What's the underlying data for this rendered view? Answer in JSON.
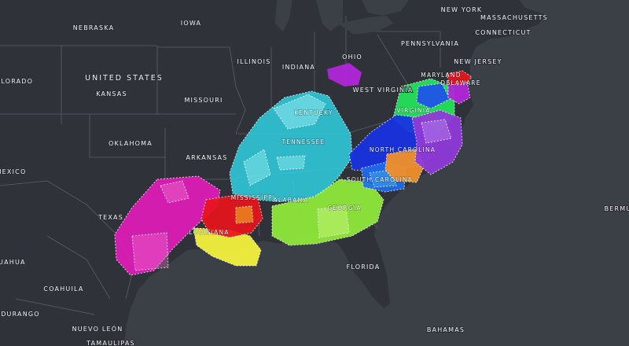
{
  "map": {
    "colors": {
      "ocean": "#3b3f46",
      "land": "#2f3238",
      "border": "#5a5f68",
      "label": "#eef0f3"
    },
    "labels": {
      "nebraska": "NEBRASKA",
      "iowa": "IOWA",
      "new_york": "NEW YORK",
      "massachusetts": "MASSACHUSETTS",
      "connecticut": "CONNECTICUT",
      "pennsylvania": "PENNSYLVANIA",
      "new_jersey": "NEW JERSEY",
      "illinois": "ILLINOIS",
      "indiana": "INDIANA",
      "ohio": "OHIO",
      "colorado": "OLORADO",
      "united_states": "UNITED STATES",
      "kansas": "KANSAS",
      "missouri": "MISSOURI",
      "maryland": "MARYLAND",
      "delaware": "DELAWARE",
      "west_virginia": "WEST VIRGINIA",
      "virginia": "VIRGINIA",
      "kentucky": "KENTUCKY",
      "tennessee": "TENNESSEE",
      "north_carolina": "NORTH CAROLINA",
      "oklahoma": "OKLAHOMA",
      "arkansas": "ARKANSAS",
      "mexico": "MEXICO",
      "south_carolina": "SOUTH CAROLINA",
      "mississippi": "MISSISSIPPI",
      "alabama": "ALABAMA",
      "georgia": "GEORGIA",
      "texas": "TEXAS",
      "louisiana": "LOUISIANA",
      "bermuda": "BERMU",
      "florida": "FLORIDA",
      "chihuahua": "IHUAHUA",
      "coahuila": "COAHUILA",
      "durango": "DURANGO",
      "nuevo_leon": "NUEVO LEÓN",
      "tamaulipas": "TAMAULIPAS",
      "bahamas": "BAHAMAS"
    },
    "region_colors": {
      "magenta": "#e21bb8",
      "red": "#e8141c",
      "yellow": "#f3f13c",
      "cyan": "#2fd0e0",
      "lime": "#8ee83a",
      "green": "#25e05a",
      "blue": "#1733e0",
      "mid_blue": "#1e6df0",
      "orange": "#f0902a",
      "purple": "#8f3ad8",
      "violet": "#b026d8"
    }
  }
}
